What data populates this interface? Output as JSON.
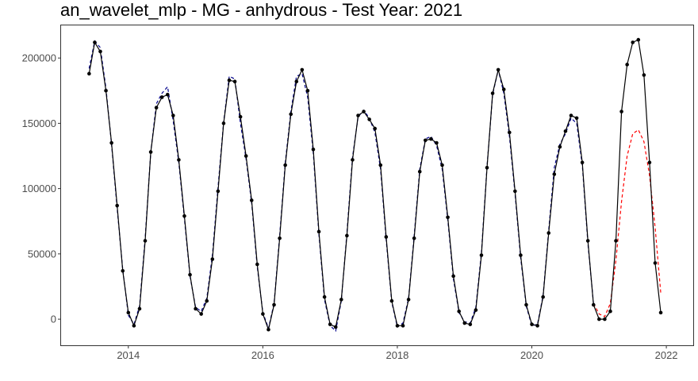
{
  "chart_data": {
    "type": "line",
    "title": "an_wavelet_mlp - MG - anhydrous - Test Year: 2021",
    "xlabel": "",
    "ylabel": "",
    "xlim": [
      2013.0,
      2022.4
    ],
    "ylim": [
      -20000,
      225000
    ],
    "xticks": [
      2014,
      2016,
      2018,
      2020,
      2022
    ],
    "yticks": [
      0,
      50000,
      100000,
      150000,
      200000
    ],
    "ytick_labels": [
      "0",
      "50000",
      "100000",
      "150000",
      "200000"
    ],
    "grid": false,
    "legend": "none",
    "colors": {
      "actual": "#000000",
      "fitted": "#00008b",
      "forecast": "#ff0000"
    },
    "series": [
      {
        "role": "actual",
        "style": "solid-with-points",
        "x_start": 2013.417,
        "step": 0.0833333,
        "values": [
          188000,
          212000,
          205000,
          175000,
          135000,
          87000,
          37000,
          5000,
          -5000,
          8000,
          60000,
          128000,
          162000,
          170000,
          172000,
          156000,
          122000,
          79000,
          34000,
          8000,
          4000,
          14000,
          46000,
          98000,
          150000,
          183000,
          182000,
          155000,
          125000,
          91000,
          42000,
          4000,
          -8000,
          11000,
          62000,
          118000,
          157000,
          182000,
          191000,
          175000,
          130000,
          67000,
          17000,
          -4000,
          -6000,
          15000,
          64000,
          122000,
          156000,
          159000,
          153000,
          146000,
          118000,
          63000,
          14000,
          -5000,
          -5000,
          15000,
          62000,
          113000,
          137000,
          138000,
          135000,
          118000,
          78000,
          33000,
          6000,
          -3000,
          -4000,
          7000,
          49000,
          116000,
          173000,
          191000,
          176000,
          143000,
          98000,
          49000,
          11000,
          -4000,
          -5000,
          17000,
          66000,
          111000,
          132000,
          144000,
          156000,
          154000,
          120000,
          60000,
          11000,
          0,
          0,
          6000,
          60000,
          159000,
          195000,
          212000,
          214000,
          187000,
          120000,
          43000,
          5000
        ]
      },
      {
        "role": "fitted",
        "style": "dashed",
        "x_start": 2013.417,
        "step": 0.0833333,
        "values": [
          192000,
          213000,
          208000,
          177000,
          134000,
          85000,
          38000,
          3000,
          -4000,
          10000,
          62000,
          128000,
          165000,
          173000,
          178000,
          152000,
          120000,
          77000,
          33000,
          9000,
          6000,
          16000,
          49000,
          101000,
          151000,
          186000,
          184000,
          150000,
          123000,
          89000,
          40000,
          5000,
          -7000,
          12000,
          64000,
          120000,
          159000,
          186000,
          188000,
          170000,
          127000,
          65000,
          15000,
          -5000,
          -9000,
          14000,
          66000,
          124000,
          155000,
          160000,
          154000,
          143000,
          115000,
          61000,
          13000,
          -6000,
          -3000,
          16000,
          64000,
          115000,
          138000,
          140000,
          133000,
          115000,
          76000,
          31000,
          5000,
          -2000,
          -3000,
          9000,
          51000,
          117000,
          172000,
          191000,
          173000,
          140000,
          96000,
          47000,
          10000,
          -5000,
          -4000,
          18000,
          68000,
          116000,
          134000,
          142000,
          154000,
          150000,
          118000,
          58000,
          12000
        ]
      },
      {
        "role": "forecast",
        "style": "dashed",
        "x_start": 2020.917,
        "step": 0.0833333,
        "values": [
          12000,
          4000,
          2000,
          12000,
          45000,
          90000,
          125000,
          142000,
          145000,
          136000,
          110000,
          70000,
          20000
        ]
      }
    ]
  }
}
